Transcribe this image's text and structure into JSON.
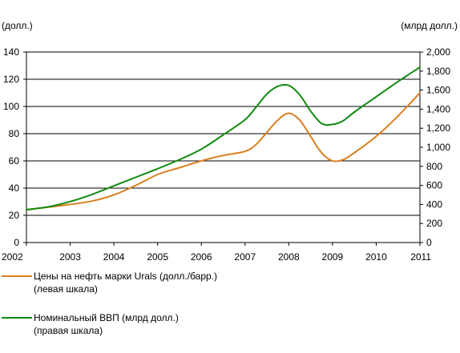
{
  "chart_data": {
    "type": "line",
    "left_unit": "(долл.)",
    "right_unit": "(млрд долл.)",
    "x": [
      2002,
      2002.5,
      2003,
      2003.5,
      2004,
      2004.5,
      2005,
      2005.5,
      2006,
      2006.5,
      2007,
      2007.25,
      2007.5,
      2007.75,
      2008,
      2008.25,
      2008.5,
      2008.75,
      2009,
      2009.25,
      2009.5,
      2010,
      2010.5,
      2011
    ],
    "x_ticks": [
      "2002",
      "2003",
      "2004",
      "2005",
      "2006",
      "2007",
      "2008",
      "2009",
      "2010",
      "2011"
    ],
    "y_left_ticks": [
      "0",
      "20",
      "40",
      "60",
      "80",
      "100",
      "120",
      "140"
    ],
    "y_right_ticks": [
      "0",
      "200",
      "400",
      "600",
      "800",
      "1,000",
      "1,200",
      "1,400",
      "1,600",
      "1,800",
      "2,000"
    ],
    "ylim_left": [
      0,
      140
    ],
    "ylim_right": [
      0,
      2000
    ],
    "series": [
      {
        "name": "Цены на нефть марки Urals (долл./барр.)",
        "axis": "left",
        "color": "#d97f1e",
        "values": [
          24,
          26,
          28,
          30.5,
          35,
          42,
          50,
          55,
          60,
          64,
          67,
          72,
          81,
          90,
          95,
          90,
          78,
          66,
          60,
          61,
          66,
          78,
          93,
          110
        ]
      },
      {
        "name": "Номинальный ВВП (млрд долл.)",
        "axis": "right",
        "color": "#118a11",
        "values": [
          345,
          375,
          430,
          505,
          595,
          685,
          775,
          870,
          980,
          1130,
          1290,
          1420,
          1560,
          1640,
          1650,
          1550,
          1380,
          1250,
          1240,
          1280,
          1370,
          1530,
          1690,
          1840
        ]
      }
    ]
  },
  "legend": [
    {
      "line1": "Цены на нефть марки Urals (долл./барр.)",
      "line2": "(левая шкала)",
      "color": "#d97f1e"
    },
    {
      "line1": "Номинальный ВВП (млрд долл.)",
      "line2": "(правая шкала)",
      "color": "#118a11"
    }
  ]
}
